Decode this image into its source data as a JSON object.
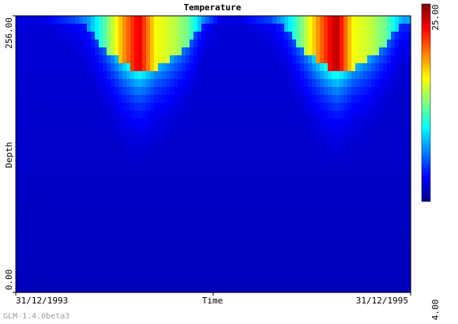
{
  "chart_data": {
    "type": "heatmap",
    "title": "Temperature",
    "xlabel": "Time",
    "ylabel": "Depth",
    "x_ticks": [
      "31/12/1993",
      "31/12/1995"
    ],
    "y_ticks": [
      "256.00",
      "0.00"
    ],
    "ylim": [
      0,
      256
    ],
    "colorbar": {
      "min": 4.0,
      "max": 25.0,
      "min_label": "4.00",
      "max_label": "25.00",
      "colormap": "jet"
    },
    "surface_temperature_by_month": [
      {
        "month": "1994-01",
        "value": 6
      },
      {
        "month": "1994-02",
        "value": 6
      },
      {
        "month": "1994-03",
        "value": 7
      },
      {
        "month": "1994-04",
        "value": 8
      },
      {
        "month": "1994-05",
        "value": 10
      },
      {
        "month": "1994-06",
        "value": 14
      },
      {
        "month": "1994-07",
        "value": 19
      },
      {
        "month": "1994-08",
        "value": 23
      },
      {
        "month": "1994-09",
        "value": 17
      },
      {
        "month": "1994-10",
        "value": 16
      },
      {
        "month": "1994-11",
        "value": 14
      },
      {
        "month": "1994-12",
        "value": 9
      },
      {
        "month": "1995-01",
        "value": 6
      },
      {
        "month": "1995-02",
        "value": 6
      },
      {
        "month": "1995-03",
        "value": 7
      },
      {
        "month": "1995-04",
        "value": 8
      },
      {
        "month": "1995-05",
        "value": 11
      },
      {
        "month": "1995-06",
        "value": 15
      },
      {
        "month": "1995-07",
        "value": 20
      },
      {
        "month": "1995-08",
        "value": 24
      },
      {
        "month": "1995-09",
        "value": 17
      },
      {
        "month": "1995-10",
        "value": 16
      },
      {
        "month": "1995-11",
        "value": 14
      },
      {
        "month": "1995-12",
        "value": 10
      }
    ]
  },
  "footer": {
    "version": "GLM-1.4.0beta3"
  }
}
